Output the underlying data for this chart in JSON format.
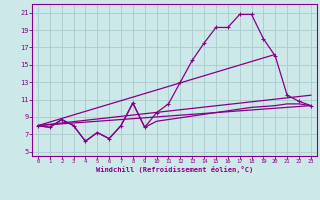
{
  "xlabel": "Windchill (Refroidissement éolien,°C)",
  "bg_color": "#cce8e8",
  "grid_color": "#aacccc",
  "line_color": "#880088",
  "xlim": [
    -0.5,
    23.5
  ],
  "ylim": [
    4.5,
    22
  ],
  "xticks": [
    0,
    1,
    2,
    3,
    4,
    5,
    6,
    7,
    8,
    9,
    10,
    11,
    12,
    13,
    14,
    15,
    16,
    17,
    18,
    19,
    20,
    21,
    22,
    23
  ],
  "yticks": [
    5,
    7,
    9,
    11,
    13,
    15,
    17,
    19,
    21
  ],
  "series_main_x": [
    0,
    1,
    2,
    3,
    4,
    5,
    6,
    7,
    8,
    9,
    10,
    11,
    12,
    13,
    14,
    15,
    16,
    17,
    18,
    19,
    20,
    21,
    22,
    23
  ],
  "series_main_y": [
    8.0,
    7.8,
    8.7,
    8.0,
    6.2,
    7.2,
    6.5,
    8.0,
    10.6,
    7.8,
    9.5,
    10.5,
    13.0,
    15.5,
    17.5,
    19.3,
    19.3,
    20.8,
    20.8,
    18.0,
    16.0,
    11.5,
    10.8,
    10.3
  ],
  "series_flat_x": [
    0,
    1,
    2,
    3,
    4,
    5,
    6,
    7,
    8,
    9,
    10,
    11,
    12,
    13,
    14,
    15,
    16,
    17,
    18,
    19,
    20,
    21,
    22,
    23
  ],
  "series_flat_y": [
    8.0,
    7.8,
    8.7,
    8.0,
    6.2,
    7.2,
    6.5,
    8.0,
    10.6,
    7.8,
    8.5,
    8.7,
    8.9,
    9.1,
    9.3,
    9.5,
    9.7,
    9.9,
    10.1,
    10.2,
    10.3,
    10.5,
    10.5,
    10.3
  ],
  "line1_x": [
    0,
    20
  ],
  "line1_y": [
    8.0,
    16.2
  ],
  "line2_x": [
    0,
    23
  ],
  "line2_y": [
    8.0,
    10.3
  ],
  "line3_x": [
    0,
    23
  ],
  "line3_y": [
    8.0,
    11.5
  ]
}
